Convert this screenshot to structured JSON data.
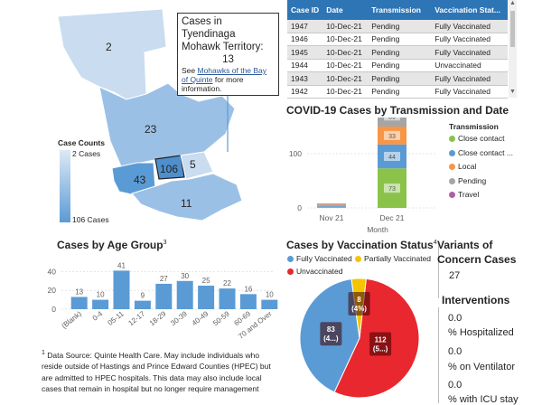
{
  "map": {
    "region_labels": [
      "2",
      "23",
      "106",
      "5",
      "43",
      "11"
    ],
    "legend_title": "Case Counts",
    "legend_min": "2 Cases",
    "legend_max": "106 Cases",
    "legend_colors": {
      "low": "#dde9f6",
      "high": "#5b9bd5"
    }
  },
  "tooltip": {
    "title_line1": "Cases in Tyendinaga",
    "title_line2": "Mohawk Territory:",
    "count": "13",
    "see": "See ",
    "link": "Mohawks of the Bay of Quinte",
    "after_link": " for more information."
  },
  "case_table": {
    "headers": [
      "Case ID",
      "Date",
      "Transmission",
      "Vaccination Stat..."
    ],
    "rows": [
      [
        "1947",
        "10-Dec-21",
        "Pending",
        "Fully Vaccinated"
      ],
      [
        "1946",
        "10-Dec-21",
        "Pending",
        "Fully Vaccinated"
      ],
      [
        "1945",
        "10-Dec-21",
        "Pending",
        "Fully Vaccinated"
      ],
      [
        "1944",
        "10-Dec-21",
        "Pending",
        "Unvaccinated"
      ],
      [
        "1943",
        "10-Dec-21",
        "Pending",
        "Fully Vaccinated"
      ],
      [
        "1942",
        "10-Dec-21",
        "Pending",
        "Fully Vaccinated"
      ]
    ]
  },
  "transmission": {
    "title": "COVID-19 Cases by Transmission and Date",
    "legend_title": "Transmission",
    "legend": [
      {
        "label": "Close contact",
        "color": "#8bc34a"
      },
      {
        "label": "Close contact ...",
        "color": "#5b9bd5"
      },
      {
        "label": "Local",
        "color": "#f79646"
      },
      {
        "label": "Pending",
        "color": "#a5a5a5"
      },
      {
        "label": "Travel",
        "color": "#b05fa5"
      }
    ]
  },
  "age": {
    "title": "Cases by Age Group",
    "sup": "3"
  },
  "vaccination": {
    "title": "Cases by Vaccination Status",
    "sup": "4",
    "legend": [
      {
        "label": "Fully Vaccinated",
        "color": "#5b9bd5"
      },
      {
        "label": "Partially Vaccinated",
        "color": "#f5c400"
      },
      {
        "label": "Unvaccinated",
        "color": "#e8272e"
      }
    ]
  },
  "variants": {
    "title_line1": "Variants of",
    "title_line2": "Concern Cases",
    "value": "27"
  },
  "interventions": {
    "title": "Interventions",
    "items": [
      {
        "value": "0.0",
        "label": "% Hospitalized"
      },
      {
        "value": "0.0",
        "label": "% on Ventilator"
      },
      {
        "value": "0.0",
        "label": "% with ICU stay"
      }
    ]
  },
  "footnote": {
    "sup": "1",
    "text": "Data Source: Quinte Health Care. May include individuals who reside outside of Hastings and Prince Edward Counties (HPEC) but are admitted to HPEC hospitals.  This data may also include local cases that remain in hospital but no longer require management"
  },
  "chart_data": [
    {
      "type": "bar",
      "title": "COVID-19 Cases by Transmission and Date",
      "xlabel": "Month",
      "categories": [
        "Nov 21",
        "Dec 21"
      ],
      "ylim": [
        0,
        150
      ],
      "yticks": [
        "0",
        "100"
      ],
      "series": [
        {
          "name": "Close contact",
          "color": "#8bc34a",
          "values": [
            2,
            73
          ]
        },
        {
          "name": "Close contact ...",
          "color": "#5b9bd5",
          "values": [
            2,
            44
          ]
        },
        {
          "name": "Local",
          "color": "#f79646",
          "values": [
            2,
            33
          ]
        },
        {
          "name": "Pending",
          "color": "#a5a5a5",
          "values": [
            1,
            39
          ]
        },
        {
          "name": "Travel",
          "color": "#b05fa5",
          "values": [
            1,
            0
          ]
        }
      ],
      "data_labels": {
        "Dec 21": [
          "73",
          "44",
          "33",
          "39"
        ]
      }
    },
    {
      "type": "bar",
      "title": "Cases by Age Group",
      "categories": [
        "(Blank)",
        "0-4",
        "05-11",
        "12-17",
        "18-29",
        "30-39",
        "40-49",
        "50-59",
        "60-69",
        "70 and Over"
      ],
      "values": [
        13,
        10,
        41,
        9,
        27,
        30,
        25,
        22,
        16,
        10
      ],
      "ylim": [
        0,
        50
      ],
      "yticks": [
        "0",
        "20",
        "40"
      ],
      "color": "#5b9bd5"
    },
    {
      "type": "pie",
      "title": "Cases by Vaccination Status",
      "labels": [
        "Unvaccinated",
        "Fully Vaccinated",
        "Partially Vaccinated"
      ],
      "values": [
        112,
        83,
        8
      ],
      "slice_labels": [
        "112\n(5...)",
        "83\n(4...)",
        "8\n(4%)"
      ],
      "colors": [
        "#e8272e",
        "#5b9bd5",
        "#f5c400"
      ]
    }
  ]
}
